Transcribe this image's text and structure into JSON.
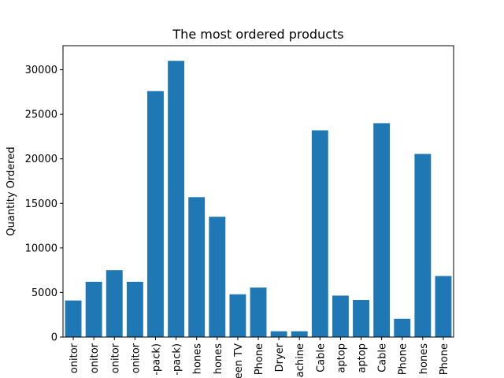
{
  "chart_data": {
    "type": "bar",
    "title": "The most ordered products",
    "xlabel": "",
    "ylabel": "Quantity Ordered",
    "ylim": [
      0,
      32700
    ],
    "yticks": [
      0,
      5000,
      10000,
      15000,
      20000,
      25000,
      30000
    ],
    "ytick_labels": [
      "0",
      "5000",
      "10000",
      "15000",
      "20000",
      "25000",
      "30000"
    ],
    "categories": [
      "onitor",
      "onitor",
      "onitor",
      "onitor",
      "-pack)",
      "-pack)",
      "hones",
      "hones",
      "een TV",
      "Phone",
      "Dryer",
      "achine",
      "Cable",
      "aptop",
      "aptop",
      "Cable",
      "Phone",
      "hones",
      "Phone"
    ],
    "values": [
      4100,
      6200,
      7500,
      6200,
      27600,
      31000,
      15700,
      13500,
      4800,
      5550,
      650,
      650,
      23200,
      4650,
      4150,
      24000,
      2050,
      20550,
      6850
    ],
    "bar_color": "#1f77b4",
    "grid": false,
    "legend": "none"
  }
}
